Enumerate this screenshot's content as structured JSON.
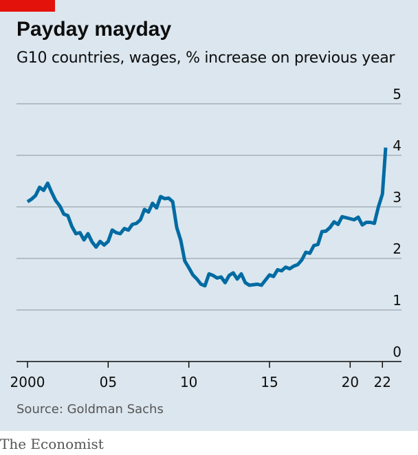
{
  "header": {
    "title": "Payday mayday",
    "subtitle": "G10 countries, wages, % increase on previous year"
  },
  "footer": {
    "source": "Source: Goldman Sachs",
    "brand": "The Economist"
  },
  "colors": {
    "background": "#dbe6ee",
    "line": "#006ba2",
    "grid": "#9aa5ad",
    "accent": "#e3120b"
  },
  "chart_data": {
    "type": "line",
    "title": "Payday mayday",
    "subtitle": "G10 countries, wages, % increase on previous year",
    "xlabel": "",
    "ylabel": "",
    "xlim": [
      2000,
      2022.5
    ],
    "ylim": [
      0,
      5
    ],
    "yticks": [
      0,
      1,
      2,
      3,
      4,
      5
    ],
    "xticks": [
      {
        "value": 2000,
        "label": "2000"
      },
      {
        "value": 2005,
        "label": "05"
      },
      {
        "value": 2010,
        "label": "10"
      },
      {
        "value": 2015,
        "label": "15"
      },
      {
        "value": 2020,
        "label": "20"
      },
      {
        "value": 2022,
        "label": "22"
      }
    ],
    "grid": true,
    "series": [
      {
        "values": [
          [
            2000.0,
            3.1
          ],
          [
            2000.25,
            3.15
          ],
          [
            2000.5,
            3.22
          ],
          [
            2000.75,
            3.38
          ],
          [
            2001.0,
            3.32
          ],
          [
            2001.25,
            3.46
          ],
          [
            2001.5,
            3.28
          ],
          [
            2001.75,
            3.12
          ],
          [
            2002.0,
            3.02
          ],
          [
            2002.25,
            2.86
          ],
          [
            2002.5,
            2.83
          ],
          [
            2002.75,
            2.62
          ],
          [
            2003.0,
            2.48
          ],
          [
            2003.25,
            2.5
          ],
          [
            2003.5,
            2.36
          ],
          [
            2003.75,
            2.48
          ],
          [
            2004.0,
            2.32
          ],
          [
            2004.25,
            2.22
          ],
          [
            2004.5,
            2.33
          ],
          [
            2004.75,
            2.26
          ],
          [
            2005.0,
            2.33
          ],
          [
            2005.25,
            2.55
          ],
          [
            2005.5,
            2.5
          ],
          [
            2005.75,
            2.48
          ],
          [
            2006.0,
            2.58
          ],
          [
            2006.25,
            2.55
          ],
          [
            2006.5,
            2.66
          ],
          [
            2006.75,
            2.68
          ],
          [
            2007.0,
            2.75
          ],
          [
            2007.25,
            2.95
          ],
          [
            2007.5,
            2.9
          ],
          [
            2007.75,
            3.07
          ],
          [
            2008.0,
            2.98
          ],
          [
            2008.25,
            3.2
          ],
          [
            2008.5,
            3.16
          ],
          [
            2008.75,
            3.17
          ],
          [
            2009.0,
            3.1
          ],
          [
            2009.25,
            2.6
          ],
          [
            2009.5,
            2.35
          ],
          [
            2009.75,
            1.95
          ],
          [
            2010.0,
            1.82
          ],
          [
            2010.25,
            1.68
          ],
          [
            2010.5,
            1.6
          ],
          [
            2010.75,
            1.5
          ],
          [
            2011.0,
            1.47
          ],
          [
            2011.25,
            1.7
          ],
          [
            2011.5,
            1.67
          ],
          [
            2011.75,
            1.62
          ],
          [
            2012.0,
            1.64
          ],
          [
            2012.25,
            1.53
          ],
          [
            2012.5,
            1.67
          ],
          [
            2012.75,
            1.72
          ],
          [
            2013.0,
            1.6
          ],
          [
            2013.25,
            1.7
          ],
          [
            2013.5,
            1.53
          ],
          [
            2013.75,
            1.48
          ],
          [
            2014.0,
            1.49
          ],
          [
            2014.25,
            1.5
          ],
          [
            2014.5,
            1.48
          ],
          [
            2014.75,
            1.58
          ],
          [
            2015.0,
            1.68
          ],
          [
            2015.25,
            1.65
          ],
          [
            2015.5,
            1.78
          ],
          [
            2015.75,
            1.76
          ],
          [
            2016.0,
            1.83
          ],
          [
            2016.25,
            1.8
          ],
          [
            2016.5,
            1.85
          ],
          [
            2016.75,
            1.88
          ],
          [
            2017.0,
            1.97
          ],
          [
            2017.25,
            2.12
          ],
          [
            2017.5,
            2.1
          ],
          [
            2017.75,
            2.25
          ],
          [
            2018.0,
            2.27
          ],
          [
            2018.25,
            2.52
          ],
          [
            2018.5,
            2.53
          ],
          [
            2018.75,
            2.6
          ],
          [
            2019.0,
            2.71
          ],
          [
            2019.25,
            2.66
          ],
          [
            2019.5,
            2.81
          ],
          [
            2019.75,
            2.79
          ],
          [
            2020.0,
            2.77
          ],
          [
            2020.25,
            2.75
          ],
          [
            2020.5,
            2.8
          ],
          [
            2020.75,
            2.65
          ],
          [
            2021.0,
            2.7
          ],
          [
            2021.25,
            2.7
          ],
          [
            2021.5,
            2.68
          ],
          [
            2021.75,
            3.0
          ],
          [
            2022.0,
            3.25
          ],
          [
            2022.2,
            4.15
          ]
        ]
      }
    ]
  }
}
